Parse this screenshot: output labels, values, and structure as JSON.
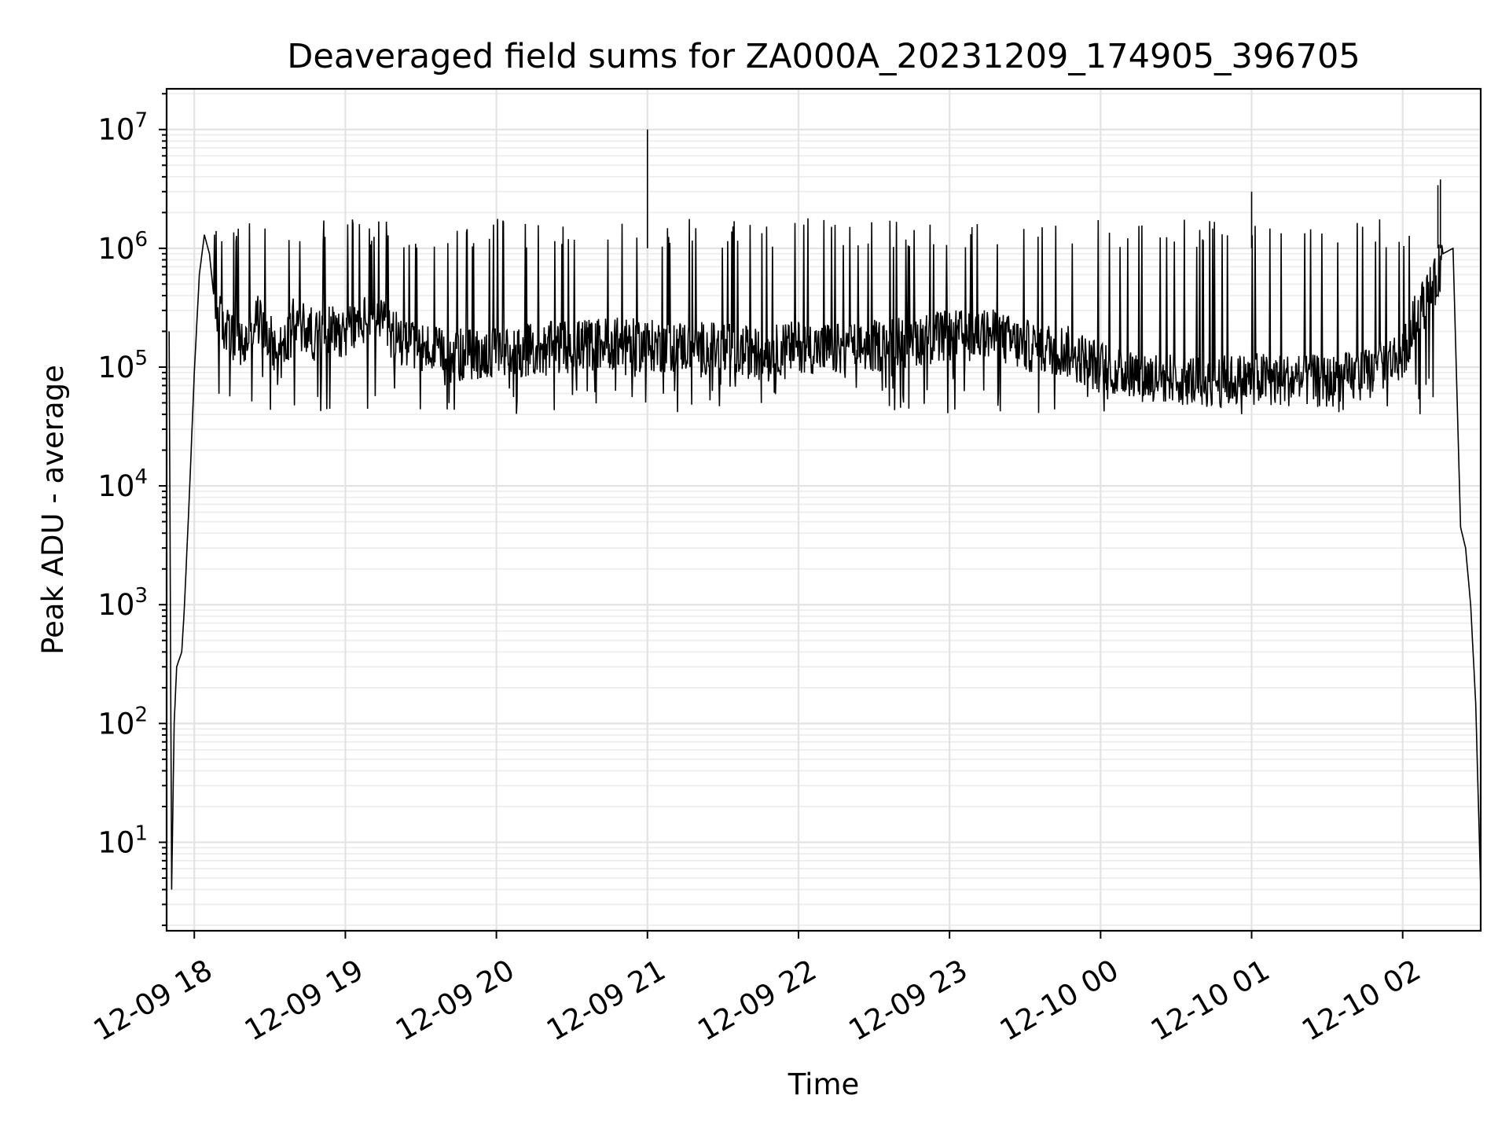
{
  "chart_data": {
    "type": "line",
    "title": "Deaveraged field sums for ZA000A_20231209_174905_396705",
    "xlabel": "Time",
    "ylabel": "Peak ADU - average",
    "yscale": "log",
    "grid": "on (major + minor)",
    "line_color": "#000000",
    "xlim": [
      "2023-12-09 17:49",
      "2023-12-10 02:31"
    ],
    "ylim": [
      1.8,
      22000000
    ],
    "x_tick_labels": [
      "12-09 18",
      "12-09 19",
      "12-09 20",
      "12-09 21",
      "12-09 22",
      "12-09 23",
      "12-10 00",
      "12-10 01",
      "12-10 02"
    ],
    "x_tick_values": [
      "2023-12-09 18:00",
      "2023-12-09 19:00",
      "2023-12-09 20:00",
      "2023-12-09 21:00",
      "2023-12-09 22:00",
      "2023-12-09 23:00",
      "2023-12-10 00:00",
      "2023-12-10 01:00",
      "2023-12-10 02:00"
    ],
    "y_ticks": [
      {
        "base": "10",
        "exp": "1",
        "value": 10
      },
      {
        "base": "10",
        "exp": "2",
        "value": 100
      },
      {
        "base": "10",
        "exp": "3",
        "value": 1000
      },
      {
        "base": "10",
        "exp": "4",
        "value": 10000
      },
      {
        "base": "10",
        "exp": "5",
        "value": 100000
      },
      {
        "base": "10",
        "exp": "6",
        "value": 1000000
      },
      {
        "base": "10",
        "exp": "7",
        "value": 10000000
      }
    ],
    "series": [
      {
        "x": [
          "2023-12-09 17:50",
          "2023-12-09 17:51",
          "2023-12-09 17:51",
          "2023-12-09 17:52",
          "2023-12-09 17:53",
          "2023-12-09 17:55",
          "2023-12-09 17:56",
          "2023-12-09 17:58",
          "2023-12-09 18:00",
          "2023-12-09 18:02",
          "2023-12-09 18:04",
          "2023-12-09 18:06",
          "2023-12-09 18:08",
          "2023-12-09 18:10",
          "2023-12-09 18:13",
          "2023-12-09 18:15",
          "2023-12-09 18:17",
          "2023-12-09 18:20",
          "2023-12-09 18:25",
          "2023-12-09 18:30",
          "2023-12-09 18:35",
          "2023-12-09 18:40",
          "2023-12-09 18:45",
          "2023-12-09 18:50",
          "2023-12-09 18:55",
          "2023-12-09 19:00",
          "2023-12-09 19:10",
          "2023-12-09 19:20",
          "2023-12-09 19:30",
          "2023-12-09 19:40",
          "2023-12-09 19:50",
          "2023-12-09 20:00",
          "2023-12-09 20:15",
          "2023-12-09 20:30",
          "2023-12-09 20:45",
          "2023-12-09 21:00",
          "2023-12-09 21:15",
          "2023-12-09 21:30",
          "2023-12-09 21:45",
          "2023-12-09 22:00",
          "2023-12-09 22:15",
          "2023-12-09 22:30",
          "2023-12-09 22:45",
          "2023-12-09 23:00",
          "2023-12-09 23:15",
          "2023-12-09 23:30",
          "2023-12-09 23:45",
          "2023-12-10 00:00",
          "2023-12-10 00:15",
          "2023-12-10 00:30",
          "2023-12-10 00:45",
          "2023-12-10 01:00",
          "2023-12-10 01:15",
          "2023-12-10 01:30",
          "2023-12-10 01:45",
          "2023-12-10 02:00",
          "2023-12-10 02:05",
          "2023-12-10 02:10",
          "2023-12-10 02:13",
          "2023-12-10 02:16",
          "2023-12-10 02:20",
          "2023-12-10 02:23",
          "2023-12-10 02:25",
          "2023-12-10 02:27",
          "2023-12-10 02:29",
          "2023-12-10 02:31"
        ],
        "y": [
          200000,
          4,
          4,
          100,
          300,
          400,
          900,
          8000,
          90000,
          600000,
          1300000,
          900000,
          350000,
          250000,
          200000,
          180000,
          160000,
          150000,
          260000,
          170000,
          130000,
          250000,
          200000,
          180000,
          210000,
          200000,
          260000,
          180000,
          150000,
          120000,
          130000,
          130000,
          140000,
          150000,
          160000,
          150000,
          150000,
          140000,
          130000,
          150000,
          140000,
          150000,
          170000,
          180000,
          190000,
          150000,
          140000,
          100000,
          85000,
          80000,
          75000,
          80000,
          78000,
          75000,
          85000,
          130000,
          250000,
          400000,
          500000,
          900000,
          1000000,
          4500,
          3000,
          1000,
          150,
          4
        ],
        "spikes": [
          {
            "x": "2023-12-09 21:00",
            "y": 10000000
          },
          {
            "x": "2023-12-10 01:00",
            "y": 3000000
          },
          {
            "x": "2023-12-10 02:15",
            "y": 3800000
          },
          {
            "x": "2023-12-10 02:14",
            "y": 3400000
          }
        ],
        "dense_noise_range": {
          "low": 40000,
          "high": 1800000
        }
      }
    ]
  }
}
